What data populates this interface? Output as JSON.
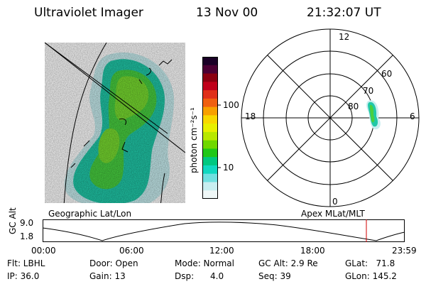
{
  "header": {
    "instrument": "Ultraviolet Imager",
    "date": "13 Nov 00",
    "time": "21:32:07 UT"
  },
  "colorbar": {
    "label": "photon cm⁻²s⁻¹",
    "ticks": [
      "100",
      "10"
    ],
    "colors": [
      "#1a0026",
      "#4b0033",
      "#8b0010",
      "#c0001a",
      "#e0301a",
      "#f06010",
      "#f8a000",
      "#f8d800",
      "#e8f000",
      "#b8e800",
      "#70d800",
      "#20c818",
      "#00c880",
      "#10d8c0",
      "#70e0e0",
      "#c8eef0",
      "#f0f8f8"
    ]
  },
  "left_panel": {
    "caption": "Geographic Lat/Lon"
  },
  "polar_panel": {
    "caption": "Apex MLat/MLT",
    "hour_labels": [
      "12",
      "18",
      "6",
      "0"
    ],
    "lat_labels": [
      "60",
      "70",
      "80"
    ]
  },
  "timeline": {
    "ylabel": "GC Alt",
    "yticks": [
      "9.0",
      "1.8"
    ],
    "xticks": [
      "00:00",
      "06:00",
      "12:00",
      "18:00",
      "23:59"
    ]
  },
  "info": {
    "flt": "Flt: LBHL",
    "ip": "IP: 36.0",
    "door": "Door: Open",
    "gain": "Gain: 13",
    "mode": "Mode: Normal",
    "dsp": "Dsp:      4.0",
    "gcalt": "GC Alt: 2.9 Re",
    "seq": "Seq: 39",
    "glat": "GLat:   71.8",
    "glon": "GLon: 145.2"
  },
  "accent": {
    "marker": "#d00000",
    "aurora_green": "#40c840",
    "aurora_teal": "#20c8a0"
  }
}
